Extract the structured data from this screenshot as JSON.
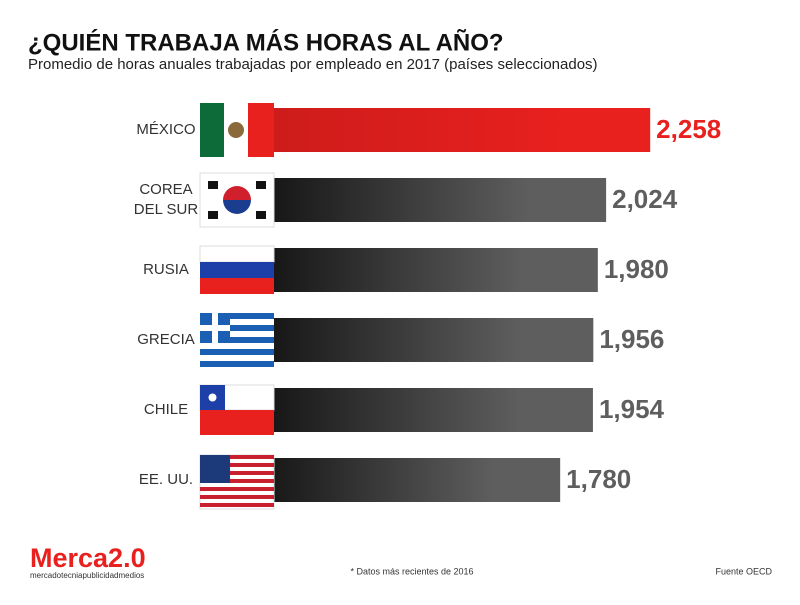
{
  "chart_data": {
    "type": "bar",
    "title": "¿QUIÉN TRABAJA MÁS HORAS AL AÑO?",
    "subtitle": "Promedio de horas anuales trabajadas por empleado en 2017 (países seleccionados)",
    "categories": [
      "MÉXICO",
      "COREA DEL SUR",
      "RUSIA",
      "GRECIA",
      "CHILE",
      "EE. UU."
    ],
    "values": [
      2258,
      2024,
      1980,
      1956,
      1954,
      1780
    ],
    "value_labels": [
      "2,258",
      "2,024",
      "1,980",
      "1,956",
      "1,954",
      "1,780"
    ],
    "colors": [
      "#e8201e",
      "#5e5e5e",
      "#5e5e5e",
      "#5e5e5e",
      "#5e5e5e",
      "#5e5e5e"
    ],
    "note": "* Datos más recientes de 2016",
    "source": "Fuente OECD",
    "logo": "Merca2.0",
    "logo_tagline": "mercadotecniapublicidadmedios"
  }
}
